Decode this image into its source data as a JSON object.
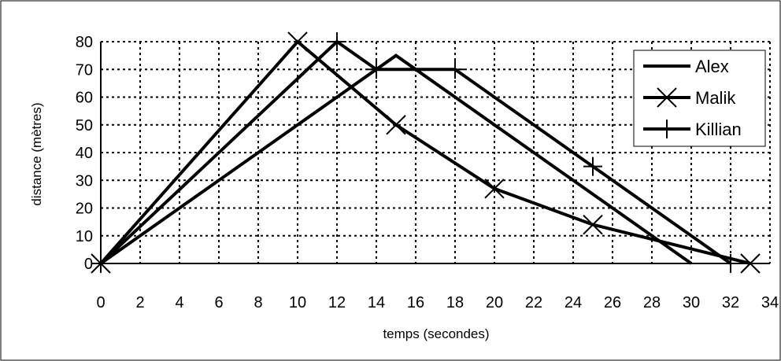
{
  "chart_data": {
    "type": "line",
    "xlabel": "temps (secondes)",
    "ylabel": "distance (mètres)",
    "xlim": [
      0,
      34
    ],
    "ylim": [
      0,
      80
    ],
    "x_ticks": [
      0,
      2,
      4,
      6,
      8,
      10,
      12,
      14,
      16,
      18,
      20,
      22,
      24,
      26,
      28,
      30,
      32,
      34
    ],
    "y_ticks": [
      0,
      10,
      20,
      30,
      40,
      50,
      60,
      70,
      80
    ],
    "grid": true,
    "legend_position": "top-right",
    "series": [
      {
        "name": "Alex",
        "marker": "none",
        "points": [
          [
            0,
            0
          ],
          [
            15,
            75
          ],
          [
            30,
            0
          ]
        ]
      },
      {
        "name": "Malik",
        "marker": "x",
        "points": [
          [
            0,
            0
          ],
          [
            10,
            80
          ],
          [
            15,
            50
          ],
          [
            20,
            27
          ],
          [
            25,
            14
          ],
          [
            33,
            0
          ]
        ]
      },
      {
        "name": "Killian",
        "marker": "plus",
        "points": [
          [
            0,
            0
          ],
          [
            12,
            80
          ],
          [
            14,
            70
          ],
          [
            18,
            70
          ],
          [
            25,
            35
          ],
          [
            32,
            0
          ]
        ]
      }
    ]
  }
}
